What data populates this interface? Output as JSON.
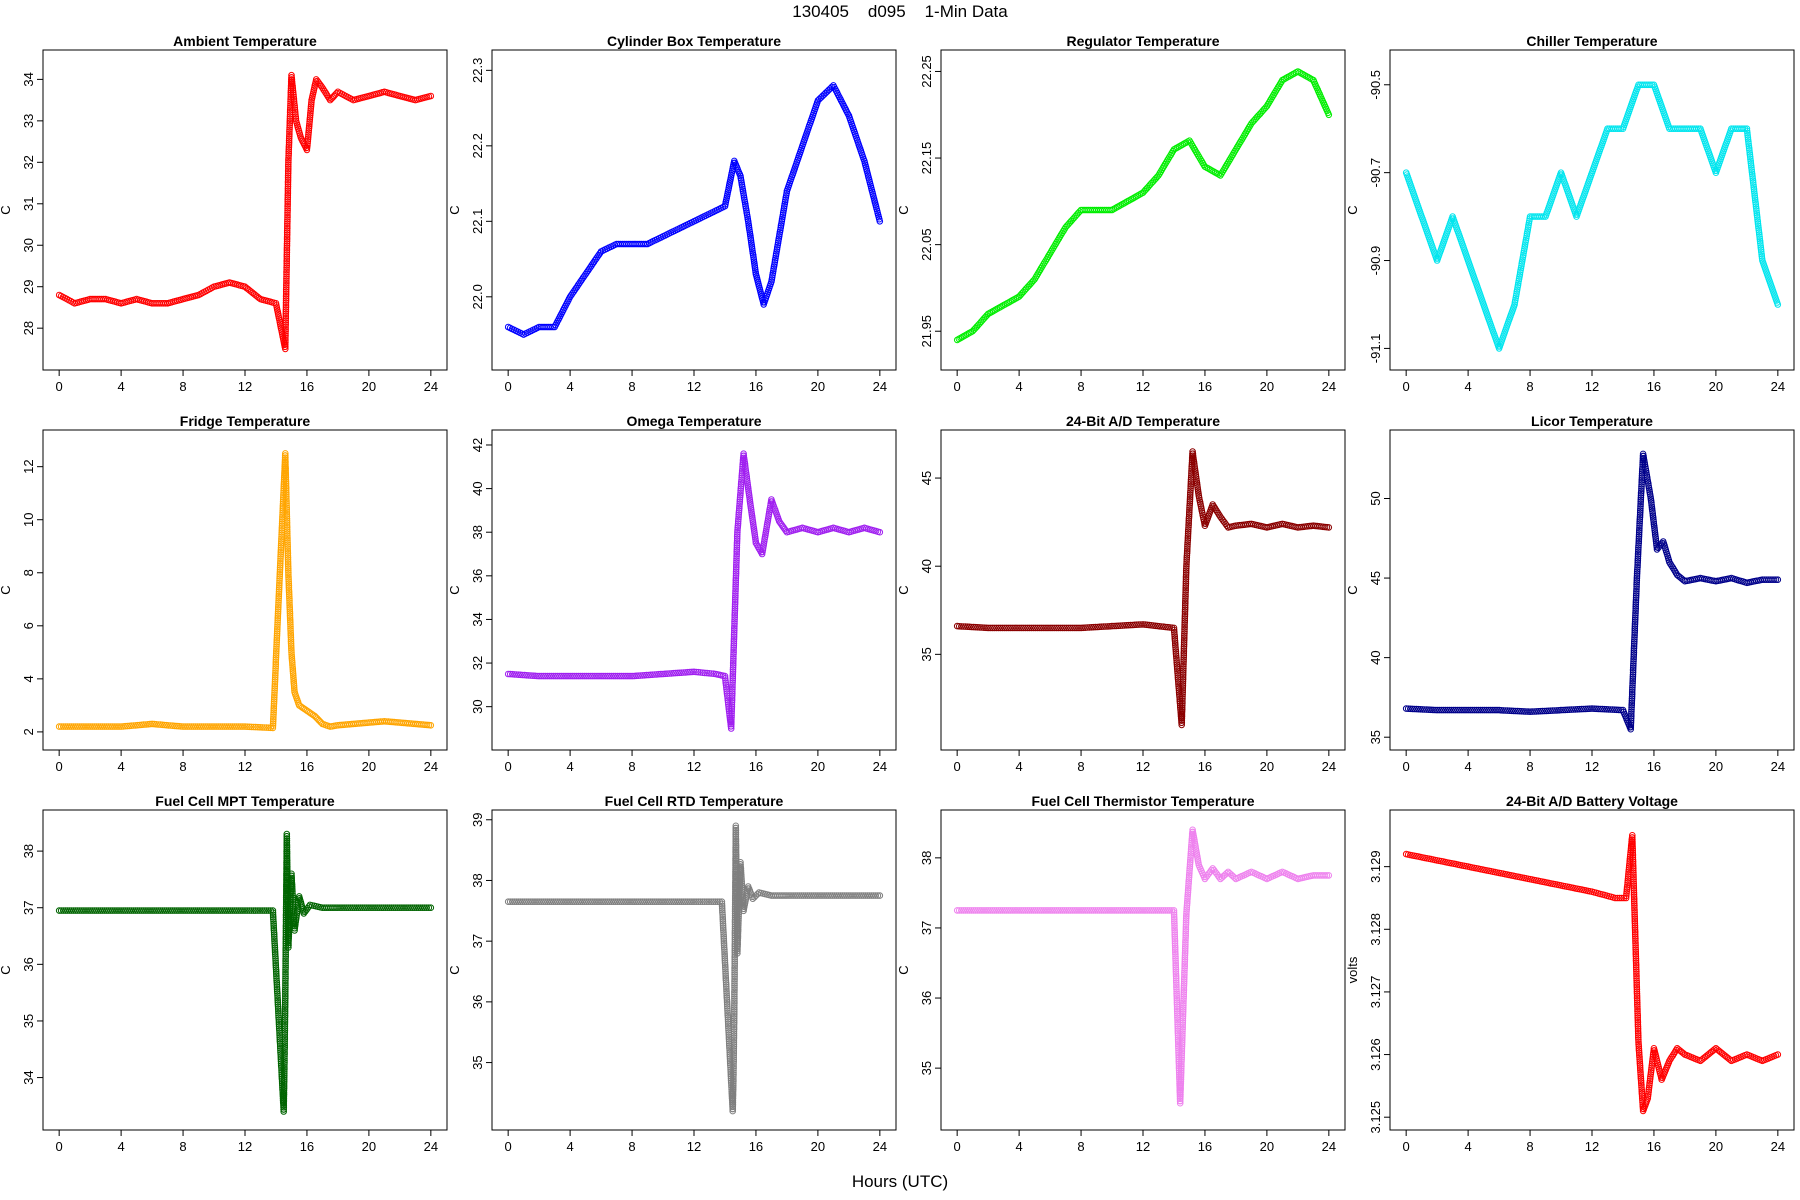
{
  "header": {
    "title": "130405    d095    1-Min Data"
  },
  "footer": {
    "x_axis_label": "Hours (UTC)"
  },
  "chart_data": [
    {
      "type": "scatter",
      "title": "Ambient Temperature",
      "xlabel": "",
      "ylabel": "C",
      "color": "#ff0000",
      "xlim": [
        0,
        24
      ],
      "ylim": [
        27.3,
        34.4
      ],
      "x_ticks": [
        0,
        4,
        8,
        12,
        16,
        20,
        24
      ],
      "y_ticks": [
        28,
        29,
        30,
        31,
        32,
        33,
        34
      ],
      "series": [
        {
          "x": [
            0,
            1,
            2,
            3,
            4,
            5,
            6,
            7,
            8,
            9,
            10,
            11,
            12,
            13,
            14,
            14.6,
            14.8,
            15,
            15.3,
            15.6,
            16,
            16.3,
            16.6,
            17,
            17.5,
            18,
            19,
            20,
            21,
            22,
            23,
            24
          ],
          "y": [
            28.8,
            28.6,
            28.7,
            28.7,
            28.6,
            28.7,
            28.6,
            28.6,
            28.7,
            28.8,
            29.0,
            29.1,
            29.0,
            28.7,
            28.6,
            27.5,
            32.0,
            34.1,
            33.0,
            32.6,
            32.3,
            33.5,
            34.0,
            33.8,
            33.5,
            33.7,
            33.5,
            33.6,
            33.7,
            33.6,
            33.5,
            33.6
          ]
        }
      ]
    },
    {
      "type": "scatter",
      "title": "Cylinder Box Temperature",
      "xlabel": "",
      "ylabel": "C",
      "color": "#0000ff",
      "xlim": [
        0,
        24
      ],
      "ylim": [
        21.92,
        22.31
      ],
      "x_ticks": [
        0,
        4,
        8,
        12,
        16,
        20,
        24
      ],
      "y_ticks": [
        22.0,
        22.1,
        22.2,
        22.3
      ],
      "series": [
        {
          "x": [
            0,
            1,
            2,
            3,
            4,
            5,
            6,
            7,
            8,
            9,
            10,
            11,
            12,
            13,
            14,
            14.6,
            15,
            15.5,
            16,
            16.5,
            17,
            17.5,
            18,
            19,
            20,
            21,
            22,
            23,
            24
          ],
          "y": [
            21.96,
            21.95,
            21.96,
            21.96,
            22.0,
            22.03,
            22.06,
            22.07,
            22.07,
            22.07,
            22.08,
            22.09,
            22.1,
            22.11,
            22.12,
            22.18,
            22.16,
            22.1,
            22.03,
            21.99,
            22.02,
            22.08,
            22.14,
            22.2,
            22.26,
            22.28,
            22.24,
            22.18,
            22.1
          ]
        }
      ]
    },
    {
      "type": "scatter",
      "title": "Regulator Temperature",
      "xlabel": "",
      "ylabel": "C",
      "color": "#00ee00",
      "xlim": [
        0,
        24
      ],
      "ylim": [
        21.92,
        22.26
      ],
      "x_ticks": [
        0,
        4,
        8,
        12,
        16,
        20,
        24
      ],
      "y_ticks": [
        21.95,
        22.05,
        22.15,
        22.25
      ],
      "series": [
        {
          "x": [
            0,
            1,
            2,
            3,
            4,
            5,
            6,
            7,
            8,
            9,
            10,
            11,
            12,
            13,
            14,
            15,
            16,
            17,
            18,
            19,
            20,
            21,
            22,
            23,
            24
          ],
          "y": [
            21.94,
            21.95,
            21.97,
            21.98,
            21.99,
            22.01,
            22.04,
            22.07,
            22.09,
            22.09,
            22.09,
            22.1,
            22.11,
            22.13,
            22.16,
            22.17,
            22.14,
            22.13,
            22.16,
            22.19,
            22.21,
            22.24,
            22.25,
            22.24,
            22.2
          ]
        }
      ]
    },
    {
      "type": "scatter",
      "title": "Chiller Temperature",
      "xlabel": "",
      "ylabel": "C",
      "color": "#00e5ee",
      "xlim": [
        0,
        24
      ],
      "ylim": [
        -91.12,
        -90.45
      ],
      "x_ticks": [
        0,
        4,
        8,
        12,
        16,
        20,
        24
      ],
      "y_ticks": [
        -91.1,
        -90.9,
        -90.7,
        -90.5
      ],
      "series": [
        {
          "x": [
            0,
            1,
            2,
            3,
            4,
            5,
            6,
            7,
            8,
            9,
            10,
            11,
            12,
            13,
            14,
            15,
            16,
            17,
            18,
            19,
            20,
            21,
            22,
            23,
            24
          ],
          "y": [
            -90.7,
            -90.8,
            -90.9,
            -90.8,
            -90.9,
            -91.0,
            -91.1,
            -91.0,
            -90.8,
            -90.8,
            -90.7,
            -90.8,
            -90.7,
            -90.6,
            -90.6,
            -90.5,
            -90.5,
            -90.6,
            -90.6,
            -90.6,
            -90.7,
            -90.6,
            -90.6,
            -90.9,
            -91.0
          ]
        }
      ]
    },
    {
      "type": "scatter",
      "title": "Fridge Temperature",
      "xlabel": "",
      "ylabel": "C",
      "color": "#ffa500",
      "xlim": [
        0,
        24
      ],
      "ylim": [
        1.8,
        12.9
      ],
      "x_ticks": [
        0,
        4,
        8,
        12,
        16,
        20,
        24
      ],
      "y_ticks": [
        2,
        4,
        6,
        8,
        10,
        12
      ],
      "series": [
        {
          "x": [
            0,
            2,
            4,
            6,
            8,
            10,
            12,
            13.8,
            14.6,
            14.8,
            15.0,
            15.2,
            15.5,
            16,
            16.5,
            17,
            17.5,
            18,
            19,
            20,
            21,
            22,
            23,
            24
          ],
          "y": [
            2.2,
            2.2,
            2.2,
            2.3,
            2.2,
            2.2,
            2.2,
            2.15,
            12.5,
            8.0,
            5.0,
            3.5,
            3.0,
            2.8,
            2.6,
            2.3,
            2.2,
            2.25,
            2.3,
            2.35,
            2.4,
            2.35,
            2.3,
            2.25
          ]
        }
      ]
    },
    {
      "type": "scatter",
      "title": "Omega Temperature",
      "xlabel": "",
      "ylabel": "C",
      "color": "#a020f0",
      "xlim": [
        0,
        24
      ],
      "ylim": [
        28.6,
        42.1
      ],
      "x_ticks": [
        0,
        4,
        8,
        12,
        16,
        20,
        24
      ],
      "y_ticks": [
        30,
        32,
        34,
        36,
        38,
        40,
        42
      ],
      "series": [
        {
          "x": [
            0,
            2,
            4,
            6,
            8,
            10,
            12,
            13.4,
            14,
            14.4,
            14.8,
            15.2,
            15.6,
            16,
            16.4,
            17,
            17.5,
            18,
            19,
            20,
            21,
            22,
            23,
            24
          ],
          "y": [
            31.5,
            31.4,
            31.4,
            31.4,
            31.4,
            31.5,
            31.6,
            31.5,
            31.4,
            29.0,
            38.0,
            41.6,
            39.5,
            37.5,
            37.0,
            39.5,
            38.5,
            38.0,
            38.2,
            38.0,
            38.2,
            38.0,
            38.2,
            38.0
          ]
        }
      ]
    },
    {
      "type": "scatter",
      "title": "24-Bit A/D Temperature",
      "xlabel": "",
      "ylabel": "C",
      "color": "#8b0000",
      "xlim": [
        0,
        24
      ],
      "ylim": [
        30.3,
        47.0
      ],
      "x_ticks": [
        0,
        4,
        8,
        12,
        16,
        20,
        24
      ],
      "y_ticks": [
        35,
        40,
        45
      ],
      "series": [
        {
          "x": [
            0,
            2,
            4,
            6,
            8,
            10,
            12,
            14,
            14.5,
            14.8,
            15.2,
            15.6,
            16,
            16.5,
            17,
            17.5,
            18,
            19,
            20,
            21,
            22,
            23,
            24
          ],
          "y": [
            36.6,
            36.5,
            36.5,
            36.5,
            36.5,
            36.6,
            36.7,
            36.5,
            31.0,
            40.0,
            46.5,
            44.0,
            42.3,
            43.5,
            42.8,
            42.2,
            42.3,
            42.4,
            42.2,
            42.4,
            42.2,
            42.3,
            42.2
          ]
        }
      ]
    },
    {
      "type": "scatter",
      "title": "Licor Temperature",
      "xlabel": "",
      "ylabel": "C",
      "color": "#00008b",
      "xlim": [
        0,
        24
      ],
      "ylim": [
        35.0,
        53.5
      ],
      "x_ticks": [
        0,
        4,
        8,
        12,
        16,
        20,
        24
      ],
      "y_ticks": [
        35,
        40,
        45,
        50
      ],
      "series": [
        {
          "x": [
            0,
            2,
            4,
            6,
            8,
            10,
            12,
            14,
            14.5,
            14.9,
            15.3,
            15.8,
            16.2,
            16.6,
            17,
            17.5,
            18,
            19,
            20,
            21,
            22,
            23,
            24
          ],
          "y": [
            36.8,
            36.7,
            36.7,
            36.7,
            36.6,
            36.7,
            36.8,
            36.7,
            35.5,
            45.0,
            52.8,
            50.0,
            46.8,
            47.3,
            46.0,
            45.2,
            44.8,
            45.0,
            44.8,
            45.0,
            44.7,
            44.9,
            44.9
          ]
        }
      ]
    },
    {
      "type": "scatter",
      "title": "Fuel Cell MPT Temperature",
      "xlabel": "",
      "ylabel": "C",
      "color": "#006400",
      "xlim": [
        0,
        24
      ],
      "ylim": [
        33.3,
        38.5
      ],
      "x_ticks": [
        0,
        4,
        8,
        12,
        16,
        20,
        24
      ],
      "y_ticks": [
        34,
        35,
        36,
        37,
        38
      ],
      "series": [
        {
          "x": [
            0,
            2,
            4,
            6,
            8,
            10,
            12,
            13.8,
            14.5,
            14.55,
            14.6,
            14.7,
            14.8,
            15.0,
            15.2,
            15.5,
            15.8,
            16.2,
            17,
            18,
            20,
            22,
            24
          ],
          "y": [
            36.95,
            36.95,
            36.95,
            36.95,
            36.95,
            36.95,
            36.95,
            36.95,
            33.4,
            34.3,
            35.4,
            38.3,
            36.3,
            37.6,
            36.6,
            37.2,
            36.9,
            37.05,
            37.0,
            37.0,
            37.0,
            37.0,
            37.0
          ]
        }
      ]
    },
    {
      "type": "scatter",
      "title": "Fuel Cell RTD Temperature",
      "xlabel": "",
      "ylabel": "C",
      "color": "#7f7f7f",
      "xlim": [
        0,
        24
      ],
      "ylim": [
        34.1,
        38.95
      ],
      "x_ticks": [
        0,
        4,
        8,
        12,
        16,
        20,
        24
      ],
      "y_ticks": [
        35,
        36,
        37,
        38,
        39
      ],
      "series": [
        {
          "x": [
            0,
            2,
            4,
            6,
            8,
            10,
            12,
            13.8,
            14.5,
            14.55,
            14.6,
            14.7,
            14.8,
            15.0,
            15.2,
            15.5,
            15.8,
            16.2,
            17,
            18,
            20,
            22,
            24
          ],
          "y": [
            37.65,
            37.65,
            37.65,
            37.65,
            37.65,
            37.65,
            37.65,
            37.65,
            34.2,
            34.8,
            35.8,
            38.9,
            36.8,
            38.3,
            37.5,
            37.9,
            37.7,
            37.8,
            37.75,
            37.75,
            37.75,
            37.75,
            37.75
          ]
        }
      ]
    },
    {
      "type": "scatter",
      "title": "Fuel Cell Thermistor Temperature",
      "xlabel": "",
      "ylabel": "C",
      "color": "#ee82ee",
      "xlim": [
        0,
        24
      ],
      "ylim": [
        34.3,
        38.5
      ],
      "x_ticks": [
        0,
        4,
        8,
        12,
        16,
        20,
        24
      ],
      "y_ticks": [
        35,
        36,
        37,
        38
      ],
      "series": [
        {
          "x": [
            0,
            2,
            4,
            6,
            8,
            10,
            12,
            14,
            14.4,
            14.8,
            15.2,
            15.6,
            16,
            16.5,
            17,
            17.5,
            18,
            19,
            20,
            21,
            22,
            23,
            24
          ],
          "y": [
            37.25,
            37.25,
            37.25,
            37.25,
            37.25,
            37.25,
            37.25,
            37.25,
            34.5,
            37.2,
            38.4,
            37.9,
            37.7,
            37.85,
            37.7,
            37.8,
            37.7,
            37.8,
            37.7,
            37.8,
            37.7,
            37.75,
            37.75
          ]
        }
      ]
    },
    {
      "type": "scatter",
      "title": "24-Bit A/D Battery Voltage",
      "xlabel": "",
      "ylabel": "volts",
      "color": "#ff0000",
      "xlim": [
        0,
        24
      ],
      "ylim": [
        3.125,
        3.1297
      ],
      "x_ticks": [
        0,
        4,
        8,
        12,
        16,
        20,
        24
      ],
      "y_ticks": [
        3.125,
        3.126,
        3.127,
        3.128,
        3.129
      ],
      "series": [
        {
          "x": [
            0,
            2,
            4,
            6,
            8,
            10,
            12,
            13.5,
            14.2,
            14.6,
            15.0,
            15.3,
            15.6,
            16.0,
            16.5,
            17,
            17.5,
            18,
            19,
            20,
            21,
            22,
            23,
            24
          ],
          "y": [
            3.1292,
            3.1291,
            3.129,
            3.1289,
            3.1288,
            3.1287,
            3.1286,
            3.1285,
            3.1285,
            3.1295,
            3.1262,
            3.1251,
            3.1253,
            3.1261,
            3.1256,
            3.1259,
            3.1261,
            3.126,
            3.1259,
            3.1261,
            3.1259,
            3.126,
            3.1259,
            3.126
          ]
        }
      ]
    }
  ]
}
